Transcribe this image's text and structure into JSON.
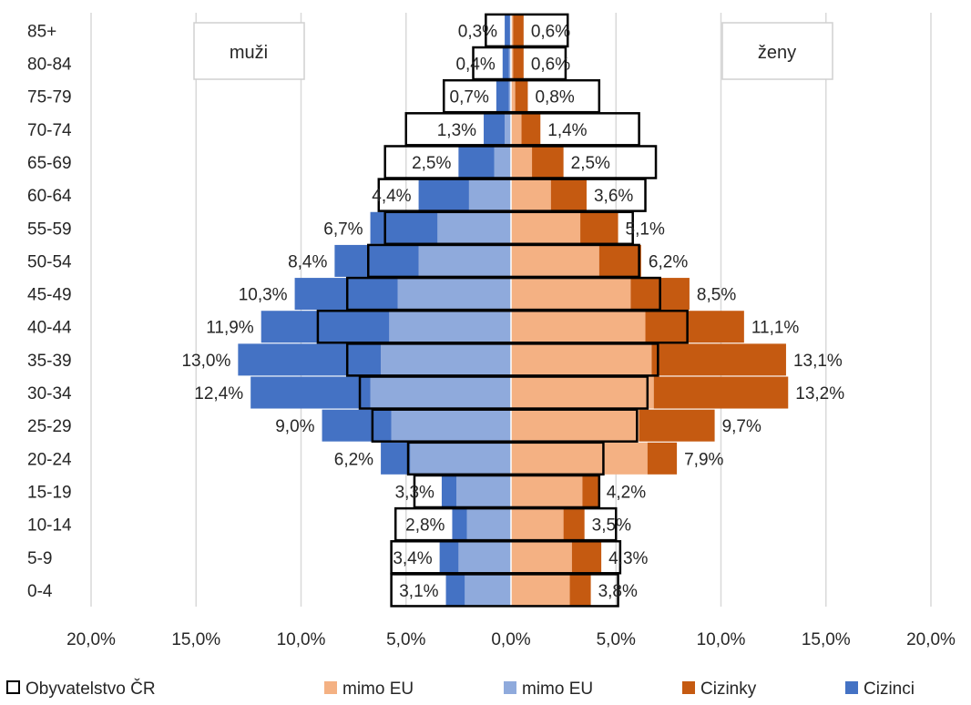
{
  "chart_data": {
    "type": "bar",
    "orientation": "horizontal",
    "subtype": "population pyramid",
    "categories": [
      "0-4",
      "5-9",
      "10-14",
      "15-19",
      "20-24",
      "25-29",
      "30-34",
      "35-39",
      "40-44",
      "45-49",
      "50-54",
      "55-59",
      "60-64",
      "65-69",
      "70-74",
      "75-79",
      "80-84",
      "85+"
    ],
    "side_labels": {
      "left": "muži",
      "right": "ženy"
    },
    "xlim": [
      -20,
      20
    ],
    "x_ticks": [
      -20,
      -15,
      -10,
      -5,
      0,
      5,
      10,
      15,
      20
    ],
    "x_tick_labels": [
      "20,0%",
      "15,0%",
      "10,0%",
      "5,0%",
      "0,0%",
      "5,0%",
      "10,0%",
      "15,0%",
      "20,0%"
    ],
    "grid": "vertical",
    "legend_position": "bottom",
    "series": [
      {
        "name": "Obyvatelstvo ČR",
        "side": "both",
        "style": "outline",
        "color": "#000000",
        "male": [
          5.7,
          5.7,
          5.5,
          4.6,
          4.9,
          6.6,
          7.2,
          7.8,
          9.2,
          7.8,
          6.8,
          6.0,
          6.3,
          6.0,
          5.0,
          3.2,
          1.8,
          1.2
        ],
        "female": [
          5.1,
          5.2,
          5.0,
          4.2,
          4.4,
          6.0,
          6.5,
          7.0,
          8.4,
          7.1,
          6.1,
          5.8,
          6.4,
          6.9,
          6.1,
          4.2,
          2.6,
          2.7
        ],
        "male_labels": [
          "3,1%",
          "3,4%",
          "2,8%",
          "3,3%",
          "6,2%",
          "9,0%",
          "12,4%",
          "13,0%",
          "11,9%",
          "10,3%",
          "8,4%",
          "6,7%",
          "4,4%",
          "2,5%",
          "1,3%",
          "0,7%",
          "0,4%",
          "0,3%"
        ],
        "female_labels": [
          "3,8%",
          "4,3%",
          "3,5%",
          "4,2%",
          "7,9%",
          "9,7%",
          "13,2%",
          "13,1%",
          "11,1%",
          "8,5%",
          "6,2%",
          "5,1%",
          "3,6%",
          "2,5%",
          "1,4%",
          "0,8%",
          "0,6%",
          "0,6%"
        ]
      },
      {
        "name": "mimo EU",
        "side": "female",
        "color": "#f4b183",
        "values": [
          2.8,
          2.9,
          2.5,
          3.4,
          6.5,
          6.1,
          6.8,
          6.7,
          6.4,
          5.7,
          4.2,
          3.3,
          1.9,
          1.0,
          0.5,
          0.2,
          0.1,
          0.1
        ]
      },
      {
        "name": "mimo EU",
        "side": "male",
        "color": "#8faadc",
        "values": [
          2.2,
          2.5,
          2.1,
          2.6,
          4.8,
          5.7,
          6.7,
          6.2,
          5.8,
          5.4,
          4.4,
          3.5,
          2.0,
          0.8,
          0.3,
          0.1,
          0.1,
          0.05
        ]
      },
      {
        "name": "Cizinky",
        "side": "female",
        "color": "#c55a11",
        "values": [
          1.0,
          1.4,
          1.0,
          0.8,
          1.4,
          3.6,
          6.4,
          6.4,
          4.7,
          2.8,
          2.0,
          1.8,
          1.7,
          1.5,
          0.9,
          0.6,
          0.5,
          0.5
        ]
      },
      {
        "name": "Cizinci",
        "side": "male",
        "color": "#4472c4",
        "values": [
          0.9,
          0.9,
          0.7,
          0.7,
          1.4,
          3.3,
          5.7,
          6.8,
          6.1,
          4.9,
          4.0,
          3.2,
          2.4,
          1.7,
          1.0,
          0.6,
          0.3,
          0.25
        ]
      }
    ]
  }
}
